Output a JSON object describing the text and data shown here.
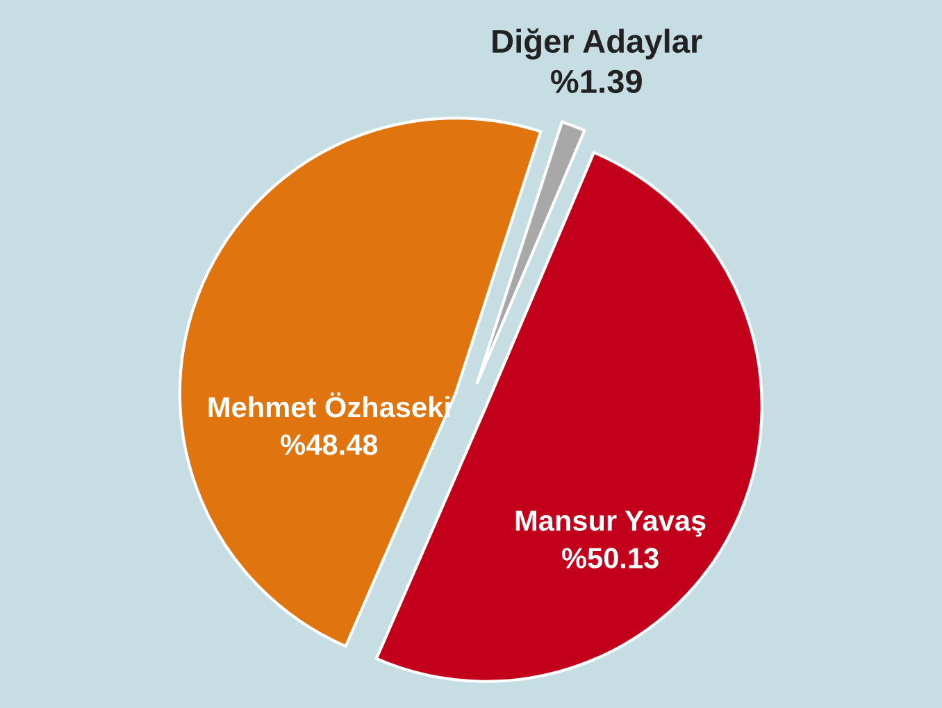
{
  "chart_data": {
    "type": "pie",
    "categories": [
      "Diğer Adaylar",
      "Mansur Yavaş",
      "Mehmet Özhaseki"
    ],
    "values": [
      1.39,
      50.13,
      48.48
    ],
    "value_labels": [
      "%1.39",
      "%50.13",
      "%48.48"
    ],
    "colors": [
      "#a8a8a8",
      "#c3001c",
      "#e0740f"
    ],
    "legend": false
  }
}
